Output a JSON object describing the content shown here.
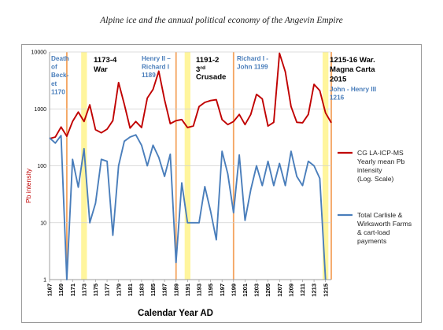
{
  "page": {
    "title": "Alpine ice and the annual political economy of the Angevin Empire"
  },
  "chart_data": {
    "type": "line",
    "yscale": "log",
    "ylim": [
      1,
      10000
    ],
    "xlim": [
      1167,
      1216
    ],
    "ylabel": "Pb intensity",
    "xlabel": "Calendar Year AD",
    "ytick_labels": [
      "10000",
      "1000",
      "100",
      "10",
      "1"
    ],
    "ytick_values": [
      10000,
      1000,
      100,
      10,
      1
    ],
    "xtick_labels": [
      "1167",
      "1169",
      "1171",
      "1173",
      "1175",
      "1177",
      "1179",
      "1181",
      "1183",
      "1185",
      "1187",
      "1189",
      "1191",
      "1193",
      "1195",
      "1197",
      "1199",
      "1201",
      "1203",
      "1205",
      "1207",
      "1209",
      "1211",
      "1213",
      "1215"
    ],
    "legend_position": "right",
    "colors": {
      "red_series": "#c00000",
      "blue_series": "#4a7ebb",
      "event_line": "#f4a460",
      "war_band": "#fff59d"
    },
    "series": [
      {
        "name": "CG LA-ICP-MS Yearly mean Pb intensity (Log. Scale)",
        "legend_lines": [
          "CG LA-ICP-MS",
          "Yearly mean Pb",
          "intensity",
          "(Log. Scale)"
        ],
        "color": "#c00000",
        "x": [
          1167,
          1168,
          1169,
          1170,
          1171,
          1172,
          1173,
          1174,
          1175,
          1176,
          1177,
          1178,
          1179,
          1180,
          1181,
          1182,
          1183,
          1184,
          1185,
          1186,
          1187,
          1188,
          1189,
          1190,
          1191,
          1192,
          1193,
          1194,
          1195,
          1196,
          1197,
          1198,
          1199,
          1200,
          1201,
          1202,
          1203,
          1204,
          1205,
          1206,
          1207,
          1208,
          1209,
          1210,
          1211,
          1212,
          1213,
          1214,
          1215,
          1216
        ],
        "values": [
          300,
          320,
          480,
          330,
          600,
          880,
          600,
          1180,
          430,
          380,
          440,
          620,
          2900,
          1200,
          460,
          600,
          470,
          1550,
          2200,
          4600,
          1450,
          550,
          620,
          650,
          470,
          500,
          1100,
          1300,
          1400,
          1450,
          650,
          530,
          600,
          800,
          530,
          800,
          1800,
          1500,
          500,
          580,
          9500,
          4500,
          1100,
          580,
          570,
          800,
          2700,
          2100,
          850,
          570
        ]
      },
      {
        "name": "Total Carlisle & Wirksworth Farms & cart-load payments",
        "legend_lines": [
          "Total Carlisle &",
          "Wirksworth Farms",
          "& cart-load",
          "payments"
        ],
        "color": "#4a7ebb",
        "x": [
          1167,
          1168,
          1169,
          1170,
          1171,
          1172,
          1173,
          1174,
          1175,
          1176,
          1177,
          1178,
          1179,
          1180,
          1181,
          1182,
          1183,
          1184,
          1185,
          1186,
          1187,
          1188,
          1189,
          1190,
          1191,
          1192,
          1193,
          1194,
          1195,
          1196,
          1197,
          1198,
          1199,
          1200,
          1201,
          1202,
          1203,
          1204,
          1205,
          1206,
          1207,
          1208,
          1209,
          1210,
          1211,
          1212,
          1213,
          1214,
          1215
        ],
        "values": [
          310,
          250,
          340,
          1,
          130,
          42,
          200,
          10,
          22,
          130,
          120,
          6,
          100,
          270,
          320,
          350,
          230,
          100,
          230,
          140,
          65,
          160,
          2,
          50,
          10,
          10,
          10,
          43,
          16,
          5,
          180,
          72,
          15,
          155,
          11,
          38,
          100,
          45,
          120,
          45,
          110,
          45,
          180,
          65,
          45,
          120,
          100,
          60,
          1
        ]
      }
    ],
    "event_lines": [
      1170,
      1189,
      1199,
      1216
    ],
    "war_bands": [
      [
        1172.5,
        1173.5
      ],
      [
        1190.5,
        1191.5
      ],
      [
        1214.5,
        1215.5
      ]
    ],
    "annotations": [
      {
        "text": "Death\nof\nBeck-\net\n1170",
        "color": "#4a7ebb"
      },
      {
        "text": "1173-4\nWar",
        "color": "#000000"
      },
      {
        "text": "Henry II –\nRichard I\n1189",
        "color": "#4a7ebb"
      },
      {
        "text": "1191-2\n3rd\nCrusade",
        "color": "#000000"
      },
      {
        "text": "Richard I -\nJohn 1199",
        "color": "#4a7ebb"
      },
      {
        "text": "1215-16 War.\nMagna Carta\n2015",
        "color": "#000000"
      },
      {
        "text": "John - Henry III\n1216",
        "color": "#4a7ebb"
      }
    ]
  }
}
